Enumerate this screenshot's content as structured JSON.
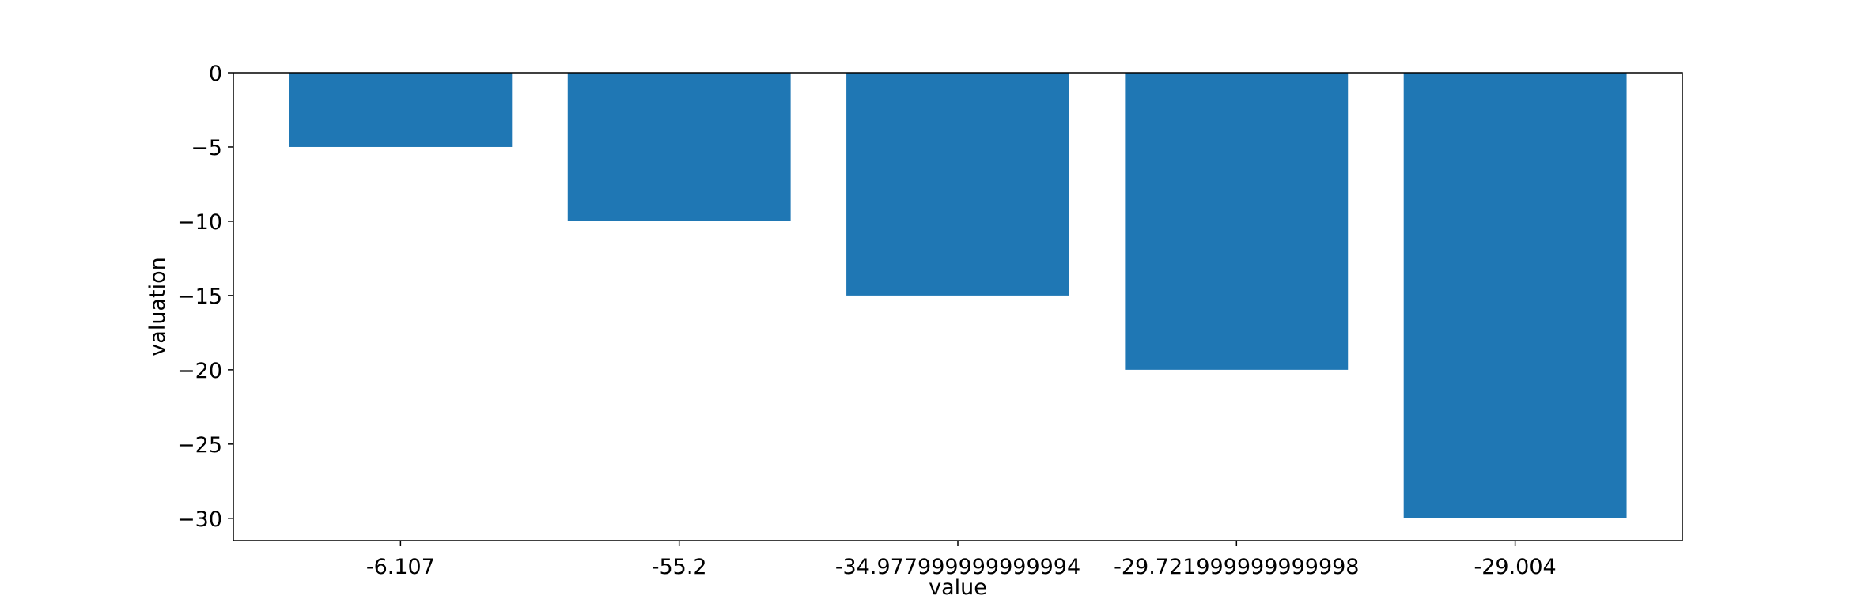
{
  "chart_data": {
    "type": "bar",
    "title": "",
    "xlabel": "value",
    "ylabel": "valuation",
    "categories": [
      "-6.107",
      "-55.2",
      "-34.977999999999994",
      "-29.721999999999998",
      "-29.004"
    ],
    "values": [
      -5,
      -10,
      -15,
      -20,
      -30
    ],
    "ylim": [
      -31.5,
      0
    ],
    "yticks": [
      0,
      -5,
      -10,
      -15,
      -20,
      -25,
      -30
    ],
    "ytick_labels": [
      "0",
      "−5",
      "−10",
      "−15",
      "−20",
      "−25",
      "−30"
    ],
    "grid": false,
    "legend": "none",
    "bar_color": "#1f77b4"
  }
}
